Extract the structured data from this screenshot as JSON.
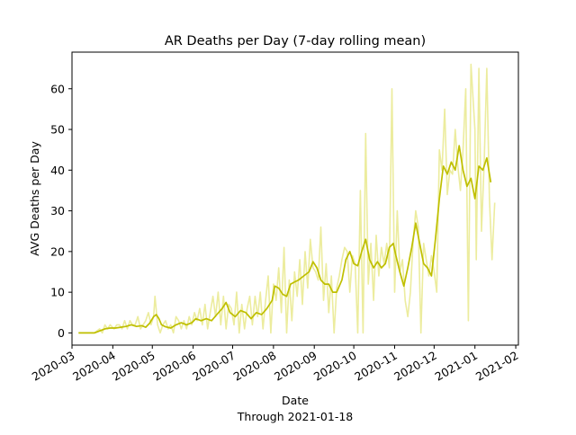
{
  "chart_data": {
    "type": "line",
    "title": "AR Deaths per Day (7-day rolling mean)",
    "xlabel": "Date",
    "xlabel_sub": "Through 2021-01-18",
    "ylabel": "AVG Deaths per Day",
    "xlim": [
      "2020-03-01",
      "2021-02-03"
    ],
    "ylim": [
      -3,
      69
    ],
    "x_ticks": [
      "2020-03",
      "2020-04",
      "2020-05",
      "2020-06",
      "2020-07",
      "2020-08",
      "2020-09",
      "2020-10",
      "2020-11",
      "2020-12",
      "2021-01",
      "2021-02"
    ],
    "y_ticks": [
      0,
      10,
      20,
      30,
      40,
      50,
      60
    ],
    "grid": false,
    "colors": {
      "rolling_mean": "#bfbf00",
      "daily": "#ecec9e"
    },
    "series": [
      {
        "role": "daily",
        "points": [
          [
            "2020-03-06",
            0
          ],
          [
            "2020-03-12",
            0
          ],
          [
            "2020-03-18",
            0
          ],
          [
            "2020-03-22",
            1
          ],
          [
            "2020-03-24",
            0
          ],
          [
            "2020-03-26",
            2
          ],
          [
            "2020-03-28",
            1
          ],
          [
            "2020-03-30",
            2
          ],
          [
            "2020-04-02",
            1
          ],
          [
            "2020-04-04",
            2
          ],
          [
            "2020-04-06",
            2
          ],
          [
            "2020-04-08",
            1
          ],
          [
            "2020-04-10",
            3
          ],
          [
            "2020-04-12",
            1
          ],
          [
            "2020-04-14",
            3
          ],
          [
            "2020-04-16",
            2
          ],
          [
            "2020-04-18",
            2
          ],
          [
            "2020-04-20",
            4
          ],
          [
            "2020-04-22",
            1
          ],
          [
            "2020-04-24",
            2
          ],
          [
            "2020-04-26",
            3
          ],
          [
            "2020-04-28",
            5
          ],
          [
            "2020-04-30",
            2
          ],
          [
            "2020-05-02",
            4
          ],
          [
            "2020-05-03",
            9
          ],
          [
            "2020-05-05",
            2
          ],
          [
            "2020-05-07",
            0
          ],
          [
            "2020-05-09",
            2
          ],
          [
            "2020-05-11",
            3
          ],
          [
            "2020-05-13",
            1
          ],
          [
            "2020-05-15",
            2
          ],
          [
            "2020-05-17",
            0
          ],
          [
            "2020-05-19",
            4
          ],
          [
            "2020-05-21",
            3
          ],
          [
            "2020-05-23",
            1
          ],
          [
            "2020-05-25",
            3
          ],
          [
            "2020-05-27",
            1
          ],
          [
            "2020-05-29",
            4
          ],
          [
            "2020-05-31",
            2
          ],
          [
            "2020-06-02",
            5
          ],
          [
            "2020-06-04",
            3
          ],
          [
            "2020-06-06",
            6
          ],
          [
            "2020-06-08",
            2
          ],
          [
            "2020-06-10",
            7
          ],
          [
            "2020-06-12",
            1
          ],
          [
            "2020-06-14",
            5
          ],
          [
            "2020-06-16",
            9
          ],
          [
            "2020-06-18",
            4
          ],
          [
            "2020-06-20",
            10
          ],
          [
            "2020-06-22",
            2
          ],
          [
            "2020-06-24",
            9
          ],
          [
            "2020-06-26",
            1
          ],
          [
            "2020-06-28",
            7
          ],
          [
            "2020-06-30",
            6
          ],
          [
            "2020-07-02",
            2
          ],
          [
            "2020-07-04",
            10
          ],
          [
            "2020-07-06",
            0
          ],
          [
            "2020-07-08",
            7
          ],
          [
            "2020-07-10",
            1
          ],
          [
            "2020-07-12",
            6
          ],
          [
            "2020-07-14",
            9
          ],
          [
            "2020-07-16",
            2
          ],
          [
            "2020-07-18",
            9
          ],
          [
            "2020-07-20",
            4
          ],
          [
            "2020-07-22",
            10
          ],
          [
            "2020-07-24",
            1
          ],
          [
            "2020-07-26",
            8
          ],
          [
            "2020-07-28",
            14
          ],
          [
            "2020-07-30",
            0
          ],
          [
            "2020-08-01",
            12
          ],
          [
            "2020-08-03",
            8
          ],
          [
            "2020-08-05",
            16
          ],
          [
            "2020-08-07",
            5
          ],
          [
            "2020-08-09",
            21
          ],
          [
            "2020-08-11",
            0
          ],
          [
            "2020-08-13",
            13
          ],
          [
            "2020-08-15",
            3
          ],
          [
            "2020-08-17",
            15
          ],
          [
            "2020-08-19",
            9
          ],
          [
            "2020-08-21",
            18
          ],
          [
            "2020-08-23",
            7
          ],
          [
            "2020-08-25",
            20
          ],
          [
            "2020-08-27",
            11
          ],
          [
            "2020-08-29",
            23
          ],
          [
            "2020-08-31",
            16
          ],
          [
            "2020-09-02",
            15
          ],
          [
            "2020-09-04",
            13
          ],
          [
            "2020-09-06",
            26
          ],
          [
            "2020-09-08",
            8
          ],
          [
            "2020-09-10",
            17
          ],
          [
            "2020-09-12",
            5
          ],
          [
            "2020-09-14",
            14
          ],
          [
            "2020-09-16",
            0
          ],
          [
            "2020-09-18",
            11
          ],
          [
            "2020-09-20",
            14
          ],
          [
            "2020-09-22",
            18
          ],
          [
            "2020-09-24",
            21
          ],
          [
            "2020-09-26",
            20
          ],
          [
            "2020-09-28",
            10
          ],
          [
            "2020-09-30",
            19
          ],
          [
            "2020-10-02",
            17
          ],
          [
            "2020-10-04",
            0
          ],
          [
            "2020-10-06",
            35
          ],
          [
            "2020-10-08",
            0
          ],
          [
            "2020-10-10",
            49
          ],
          [
            "2020-10-12",
            12
          ],
          [
            "2020-10-14",
            22
          ],
          [
            "2020-10-16",
            8
          ],
          [
            "2020-10-18",
            24
          ],
          [
            "2020-10-20",
            14
          ],
          [
            "2020-10-22",
            21
          ],
          [
            "2020-10-24",
            17
          ],
          [
            "2020-10-26",
            22
          ],
          [
            "2020-10-28",
            16
          ],
          [
            "2020-10-30",
            60
          ],
          [
            "2020-11-01",
            10
          ],
          [
            "2020-11-03",
            30
          ],
          [
            "2020-11-05",
            15
          ],
          [
            "2020-11-07",
            18
          ],
          [
            "2020-11-09",
            8
          ],
          [
            "2020-11-11",
            4
          ],
          [
            "2020-11-13",
            10
          ],
          [
            "2020-11-15",
            22
          ],
          [
            "2020-11-17",
            30
          ],
          [
            "2020-11-19",
            26
          ],
          [
            "2020-11-21",
            0
          ],
          [
            "2020-11-23",
            22
          ],
          [
            "2020-11-25",
            18
          ],
          [
            "2020-11-27",
            14
          ],
          [
            "2020-11-29",
            19
          ],
          [
            "2020-12-01",
            15
          ],
          [
            "2020-12-03",
            10
          ],
          [
            "2020-12-05",
            45
          ],
          [
            "2020-12-07",
            40
          ],
          [
            "2020-12-09",
            55
          ],
          [
            "2020-12-11",
            34
          ],
          [
            "2020-12-13",
            40
          ],
          [
            "2020-12-15",
            39
          ],
          [
            "2020-12-17",
            50
          ],
          [
            "2020-12-19",
            41
          ],
          [
            "2020-12-21",
            35
          ],
          [
            "2020-12-23",
            45
          ],
          [
            "2020-12-25",
            60
          ],
          [
            "2020-12-27",
            3
          ],
          [
            "2020-12-29",
            66
          ],
          [
            "2021-01-01",
            50
          ],
          [
            "2021-01-02",
            18
          ],
          [
            "2021-01-04",
            65
          ],
          [
            "2021-01-06",
            25
          ],
          [
            "2021-01-08",
            42
          ],
          [
            "2021-01-10",
            65
          ],
          [
            "2021-01-12",
            33
          ],
          [
            "2021-01-14",
            18
          ],
          [
            "2021-01-16",
            32
          ]
        ]
      },
      {
        "role": "rolling_mean",
        "points": [
          [
            "2020-03-06",
            0
          ],
          [
            "2020-03-12",
            0
          ],
          [
            "2020-03-18",
            0
          ],
          [
            "2020-03-22",
            0.5
          ],
          [
            "2020-03-26",
            1
          ],
          [
            "2020-03-30",
            1.2
          ],
          [
            "2020-04-03",
            1.2
          ],
          [
            "2020-04-07",
            1.4
          ],
          [
            "2020-04-11",
            1.6
          ],
          [
            "2020-04-15",
            2
          ],
          [
            "2020-04-19",
            1.6
          ],
          [
            "2020-04-23",
            1.8
          ],
          [
            "2020-04-26",
            1.4
          ],
          [
            "2020-04-29",
            2.4
          ],
          [
            "2020-05-02",
            4
          ],
          [
            "2020-05-04",
            4.5
          ],
          [
            "2020-05-06",
            3.5
          ],
          [
            "2020-05-08",
            2
          ],
          [
            "2020-05-11",
            1.5
          ],
          [
            "2020-05-15",
            1.2
          ],
          [
            "2020-05-19",
            2
          ],
          [
            "2020-05-23",
            2.5
          ],
          [
            "2020-05-27",
            2
          ],
          [
            "2020-05-31",
            2.5
          ],
          [
            "2020-06-03",
            3.5
          ],
          [
            "2020-06-07",
            3
          ],
          [
            "2020-06-11",
            3.5
          ],
          [
            "2020-06-15",
            3
          ],
          [
            "2020-06-19",
            4.5
          ],
          [
            "2020-06-23",
            6
          ],
          [
            "2020-06-26",
            7.5
          ],
          [
            "2020-06-29",
            5
          ],
          [
            "2020-07-03",
            4
          ],
          [
            "2020-07-07",
            5.5
          ],
          [
            "2020-07-11",
            5
          ],
          [
            "2020-07-15",
            3.5
          ],
          [
            "2020-07-19",
            5
          ],
          [
            "2020-07-23",
            4.5
          ],
          [
            "2020-07-27",
            6
          ],
          [
            "2020-07-31",
            8
          ],
          [
            "2020-08-02",
            11.5
          ],
          [
            "2020-08-05",
            11
          ],
          [
            "2020-08-08",
            9.5
          ],
          [
            "2020-08-11",
            9
          ],
          [
            "2020-08-14",
            12
          ],
          [
            "2020-08-17",
            12.5
          ],
          [
            "2020-08-20",
            13
          ],
          [
            "2020-08-24",
            14
          ],
          [
            "2020-08-28",
            15
          ],
          [
            "2020-08-31",
            17.5
          ],
          [
            "2020-09-03",
            16
          ],
          [
            "2020-09-06",
            13
          ],
          [
            "2020-09-09",
            12
          ],
          [
            "2020-09-12",
            12
          ],
          [
            "2020-09-15",
            10
          ],
          [
            "2020-09-18",
            10
          ],
          [
            "2020-09-22",
            13
          ],
          [
            "2020-09-25",
            18
          ],
          [
            "2020-09-28",
            20
          ],
          [
            "2020-10-01",
            17
          ],
          [
            "2020-10-04",
            16.5
          ],
          [
            "2020-10-07",
            20
          ],
          [
            "2020-10-10",
            23
          ],
          [
            "2020-10-13",
            18
          ],
          [
            "2020-10-16",
            16
          ],
          [
            "2020-10-19",
            17.5
          ],
          [
            "2020-10-22",
            16
          ],
          [
            "2020-10-25",
            17
          ],
          [
            "2020-10-28",
            21
          ],
          [
            "2020-10-31",
            22
          ],
          [
            "2020-11-02",
            19
          ],
          [
            "2020-11-05",
            15
          ],
          [
            "2020-11-08",
            11.5
          ],
          [
            "2020-11-11",
            16
          ],
          [
            "2020-11-14",
            21
          ],
          [
            "2020-11-17",
            27
          ],
          [
            "2020-11-20",
            22
          ],
          [
            "2020-11-23",
            17
          ],
          [
            "2020-11-26",
            16
          ],
          [
            "2020-11-29",
            14
          ],
          [
            "2020-12-02",
            23
          ],
          [
            "2020-12-05",
            33
          ],
          [
            "2020-12-08",
            41
          ],
          [
            "2020-12-11",
            39
          ],
          [
            "2020-12-14",
            42
          ],
          [
            "2020-12-17",
            40
          ],
          [
            "2020-12-20",
            46
          ],
          [
            "2020-12-23",
            40
          ],
          [
            "2020-12-26",
            36
          ],
          [
            "2020-12-29",
            38
          ],
          [
            "2021-01-01",
            33
          ],
          [
            "2021-01-04",
            41
          ],
          [
            "2021-01-07",
            40
          ],
          [
            "2021-01-10",
            43
          ],
          [
            "2021-01-13",
            37
          ]
        ]
      }
    ]
  }
}
